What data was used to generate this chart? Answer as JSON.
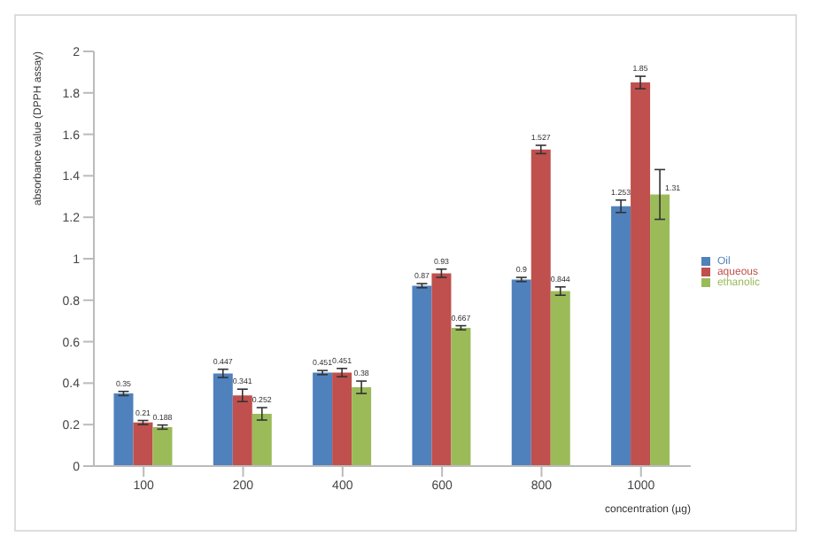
{
  "chart_data": {
    "type": "bar",
    "xlabel": "concentration (µg)",
    "ylabel": "absorbance value (DPPH assay)",
    "categories": [
      "100",
      "200",
      "400",
      "600",
      "800",
      "1000"
    ],
    "series": [
      {
        "name": "Oil",
        "color": "#4f81bd",
        "values": [
          0.35,
          0.447,
          0.451,
          0.87,
          0.9,
          1.253
        ],
        "errors": [
          0.01,
          0.02,
          0.01,
          0.01,
          0.01,
          0.03
        ]
      },
      {
        "name": "aqueous",
        "color": "#c0504d",
        "values": [
          0.21,
          0.341,
          0.451,
          0.93,
          1.527,
          1.85
        ],
        "errors": [
          0.01,
          0.03,
          0.02,
          0.02,
          0.02,
          0.03
        ]
      },
      {
        "name": "ethanolic",
        "color": "#9bbb59",
        "values": [
          0.188,
          0.252,
          0.38,
          0.667,
          0.844,
          1.31
        ],
        "errors": [
          0.01,
          0.03,
          0.03,
          0.01,
          0.02,
          0.12
        ]
      }
    ],
    "ylim": [
      0,
      2
    ],
    "yticks": [
      0,
      0.2,
      0.4,
      0.6,
      0.8,
      1,
      1.2,
      1.4,
      1.6,
      1.8,
      2
    ],
    "data_labels": true,
    "legend": "right",
    "grid": false
  }
}
